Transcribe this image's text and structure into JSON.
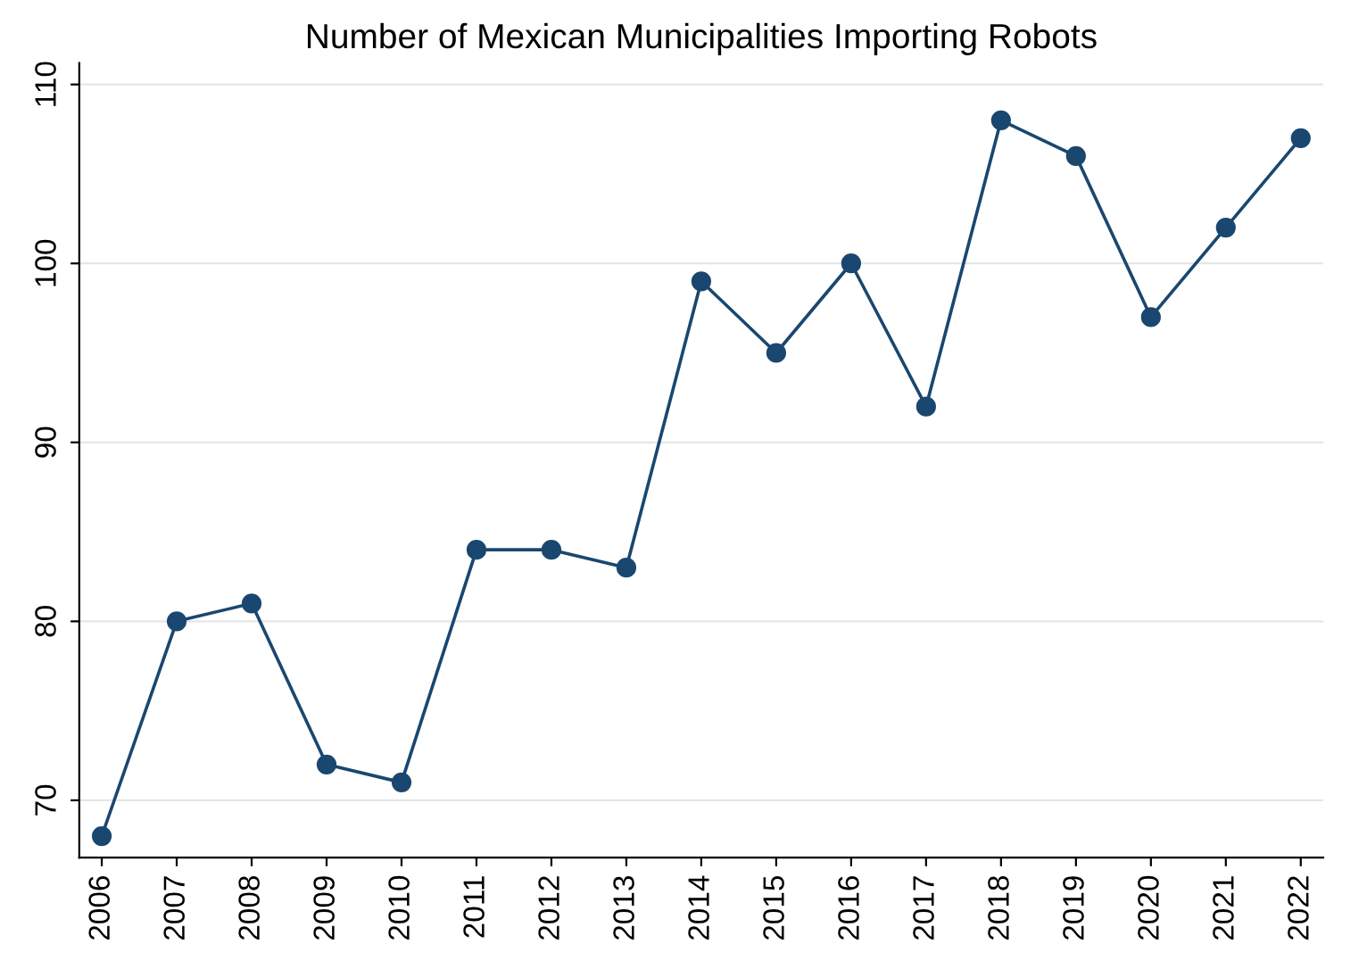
{
  "chart_data": {
    "type": "line",
    "title": "Number of Mexican Municipalities Importing Robots",
    "x": [
      2006,
      2007,
      2008,
      2009,
      2010,
      2011,
      2012,
      2013,
      2014,
      2015,
      2016,
      2017,
      2018,
      2019,
      2020,
      2021,
      2022
    ],
    "series": [
      {
        "color": "#1a476f",
        "values": [
          68,
          80,
          81,
          72,
          71,
          84,
          84,
          83,
          99,
          95,
          100,
          92,
          108,
          106,
          97,
          102,
          107
        ]
      }
    ],
    "xlim": [
      2005.7,
      2022.3
    ],
    "xticks": [
      2006,
      2007,
      2008,
      2009,
      2010,
      2011,
      2012,
      2013,
      2014,
      2015,
      2016,
      2017,
      2018,
      2019,
      2020,
      2021,
      2022
    ],
    "ylim": [
      66.8,
      111.2
    ],
    "yticks": [
      70,
      80,
      90,
      100,
      110
    ],
    "grid": "y",
    "marker": "circle",
    "line_style": "solid",
    "legend": false
  }
}
